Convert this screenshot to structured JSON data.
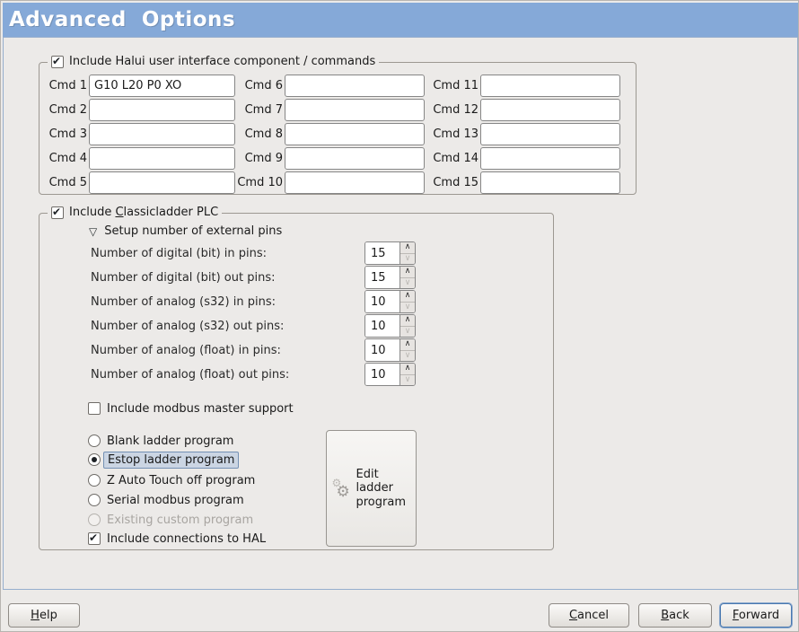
{
  "header": {
    "title": "Advanced  Options"
  },
  "glyphs": {
    "check": "✔",
    "spin_up": "∧",
    "spin_down": "∨",
    "expander_down": "▽",
    "gear": "⚙"
  },
  "colors": {
    "window_bg": "#ECEAE8",
    "header_bg": "#85A9D8",
    "panel_border": "#96AECD",
    "selection_bg": "#CBD5E3",
    "selection_border": "#7490B4"
  },
  "halui_frame": {
    "label": "Include Halui user interface component / commands",
    "checked": true,
    "commands": [
      {
        "label": "Cmd 1",
        "value": "G10 L20 P0 XO"
      },
      {
        "label": "Cmd 2",
        "value": ""
      },
      {
        "label": "Cmd 3",
        "value": ""
      },
      {
        "label": "Cmd 4",
        "value": ""
      },
      {
        "label": "Cmd 5",
        "value": ""
      },
      {
        "label": "Cmd 6",
        "value": ""
      },
      {
        "label": "Cmd 7",
        "value": ""
      },
      {
        "label": "Cmd 8",
        "value": ""
      },
      {
        "label": "Cmd 9",
        "value": ""
      },
      {
        "label": "Cmd 10",
        "value": ""
      },
      {
        "label": "Cmd 11",
        "value": ""
      },
      {
        "label": "Cmd 12",
        "value": ""
      },
      {
        "label": "Cmd 13",
        "value": ""
      },
      {
        "label": "Cmd 14",
        "value": ""
      },
      {
        "label": "Cmd 15",
        "value": ""
      }
    ]
  },
  "classicladder_frame": {
    "label": {
      "text": "Include Classicladder PLC",
      "underline": 8
    },
    "checked": true,
    "expander_label": "Setup number of external pins",
    "pin_settings": [
      {
        "label": "Number of digital (bit) in pins:",
        "value": "15"
      },
      {
        "label": "Number of digital (bit) out pins:",
        "value": "15"
      },
      {
        "label": "Number of analog (s32) in pins:",
        "value": "10"
      },
      {
        "label": "Number of analog (s32) out pins:",
        "value": "10"
      },
      {
        "label": "Number of analog (float) in pins:",
        "value": "10"
      },
      {
        "label": "Number of analog (float) out pins:",
        "value": "10"
      }
    ],
    "modbus_checkbox": {
      "label": "Include modbus master support",
      "checked": false
    },
    "ladder_options": [
      {
        "label": "Blank ladder program",
        "selected": false,
        "enabled": true
      },
      {
        "label": "Estop ladder program",
        "selected": true,
        "enabled": true
      },
      {
        "label": "Z Auto Touch off program",
        "selected": false,
        "enabled": true
      },
      {
        "label": "Serial modbus program",
        "selected": false,
        "enabled": true
      },
      {
        "label": "Existing custom program",
        "selected": false,
        "enabled": false
      }
    ],
    "hal_checkbox": {
      "label": "Include connections to HAL",
      "checked": true
    },
    "edit_button": {
      "label": "Edit ladder program",
      "icon": "gears-icon"
    }
  },
  "footer": {
    "help": {
      "text": "Help",
      "underline": 0
    },
    "cancel": {
      "text": "Cancel",
      "underline": 0
    },
    "back": {
      "text": "Back",
      "underline": 0
    },
    "forward": {
      "text": "Forward",
      "underline": 0
    }
  }
}
